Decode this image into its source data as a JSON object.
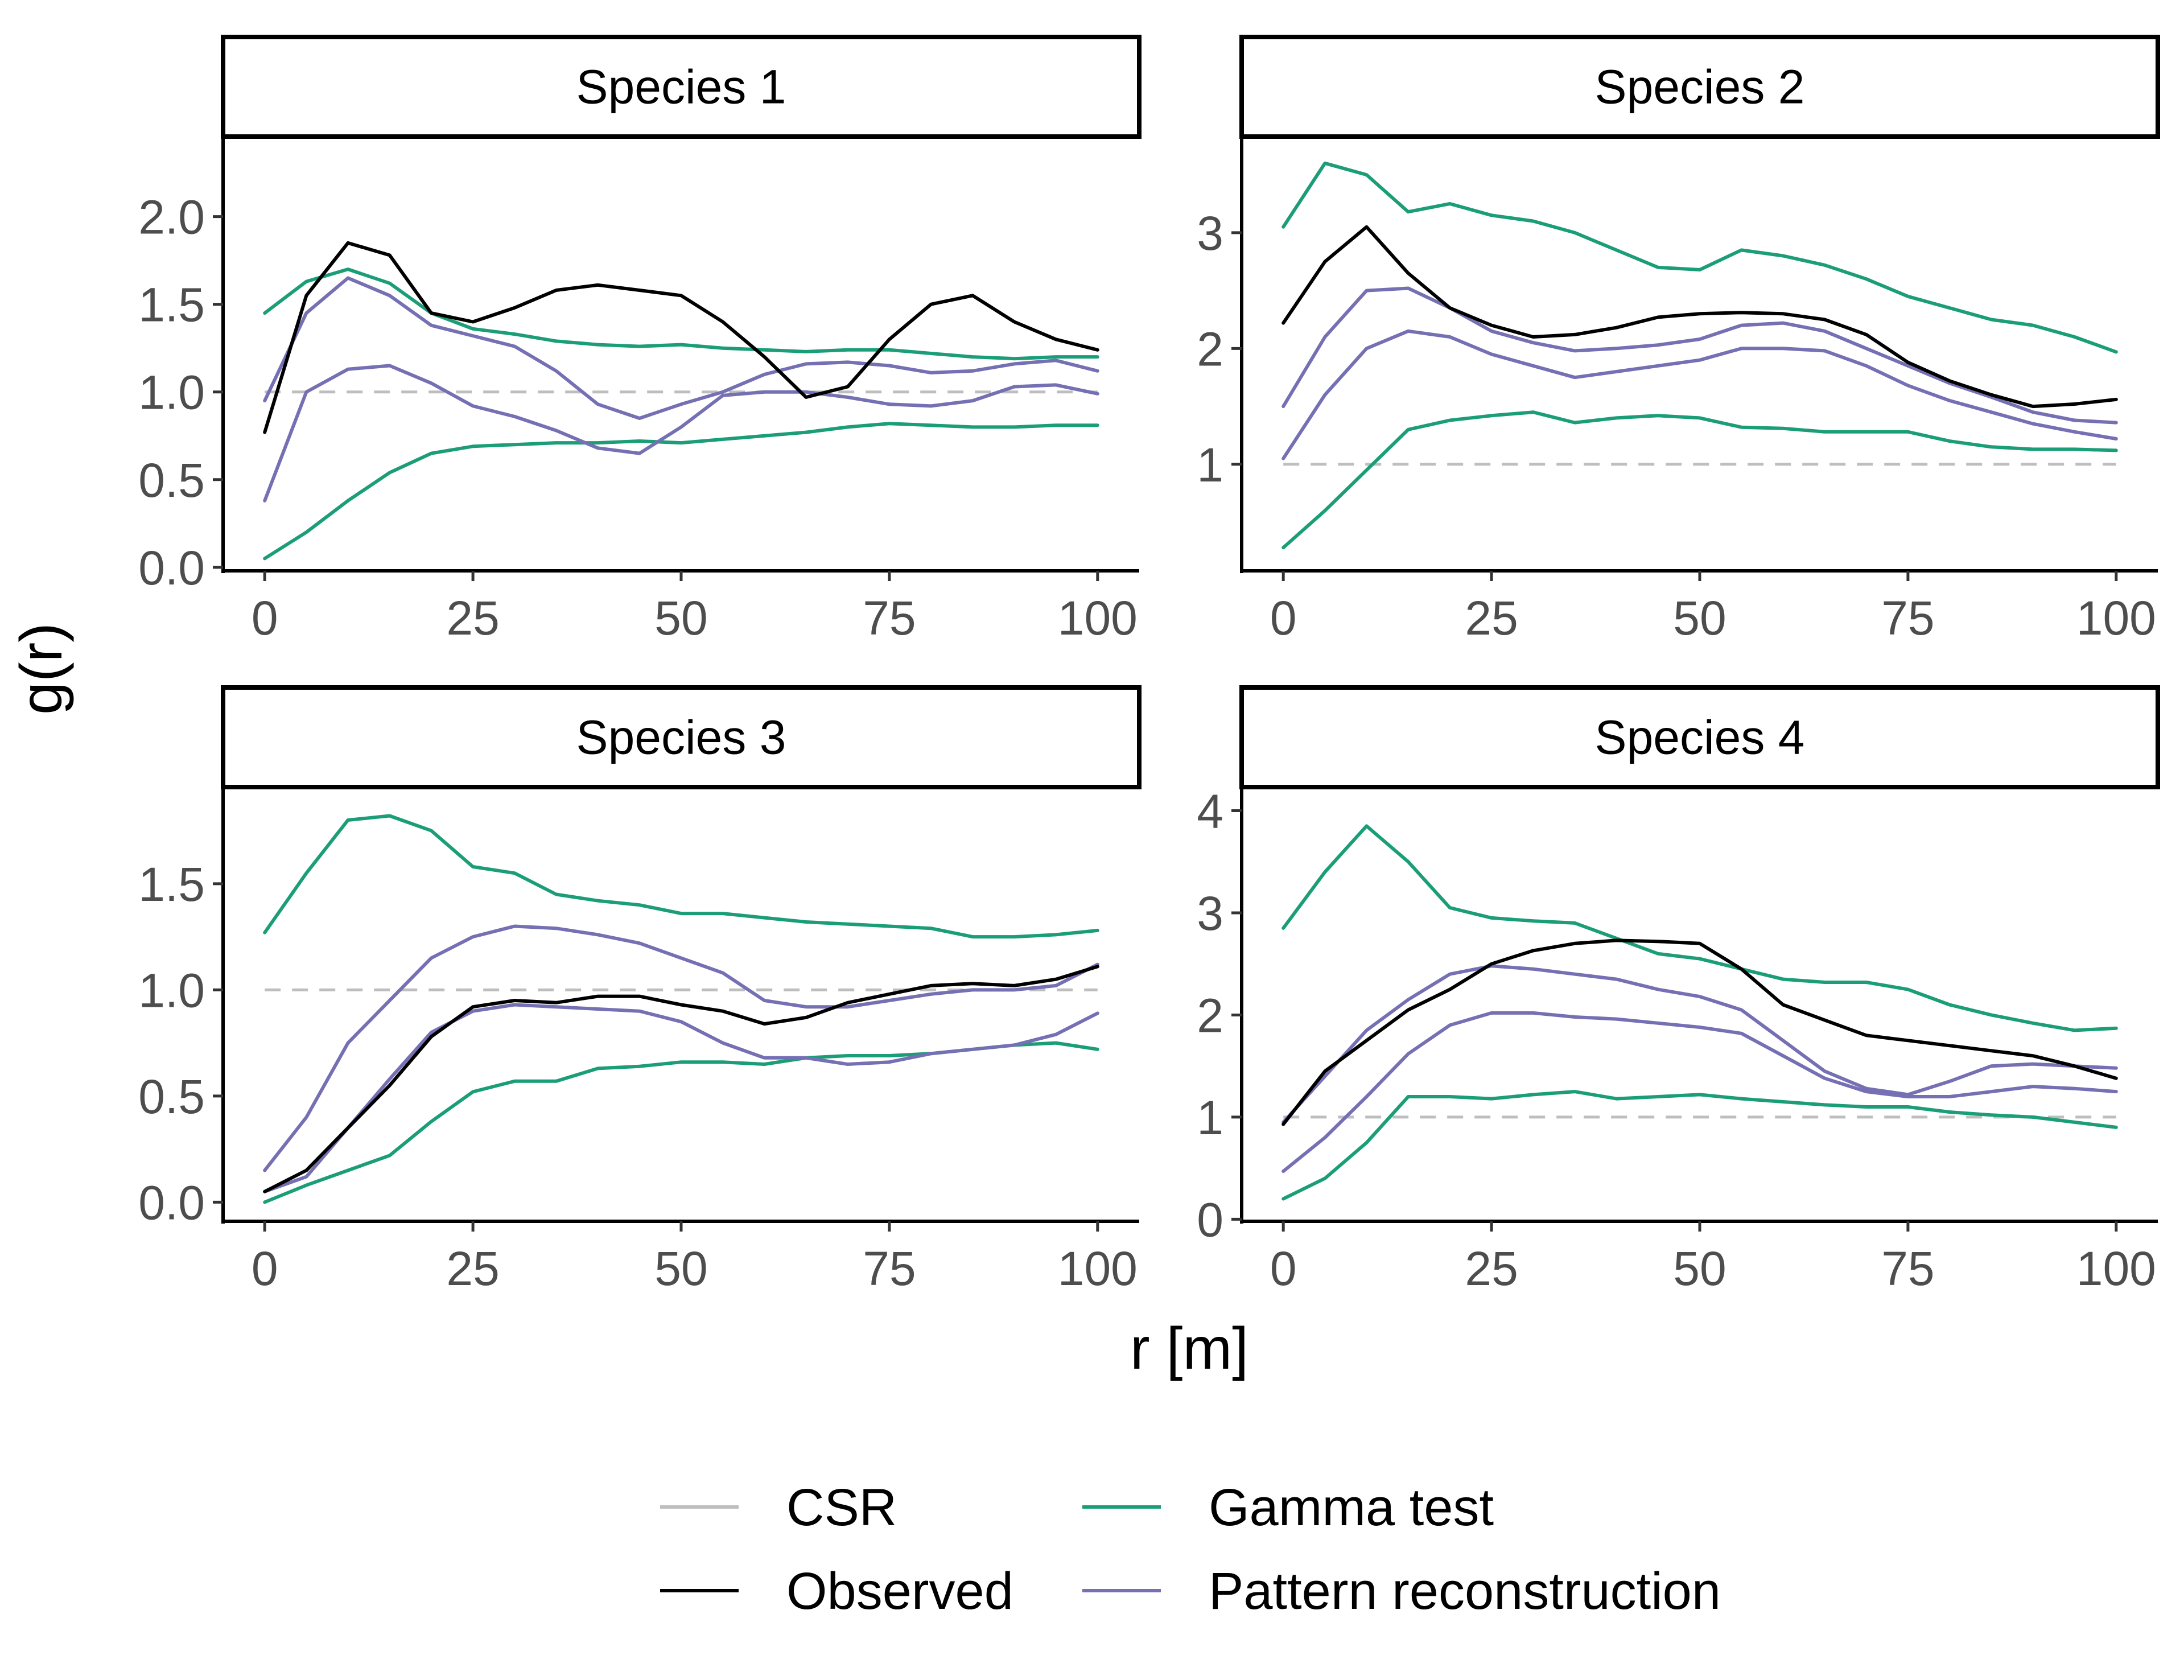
{
  "chart_data": {
    "type": "line",
    "layout": "facet-2x2",
    "xlabel": "r [m]",
    "ylabel": "g(r)",
    "legend": {
      "position": "bottom",
      "entries": [
        {
          "key": "csr",
          "label": "CSR"
        },
        {
          "key": "observed",
          "label": "Observed"
        },
        {
          "key": "gamma",
          "label": "Gamma test"
        },
        {
          "key": "recon",
          "label": "Pattern reconstruction"
        }
      ]
    },
    "colors": {
      "csr": "#bebebe",
      "observed": "#000000",
      "gamma": "#1b9e77",
      "recon": "#7570b3"
    },
    "x": [
      0,
      5,
      10,
      15,
      20,
      25,
      30,
      35,
      40,
      45,
      50,
      55,
      60,
      65,
      70,
      75,
      80,
      85,
      90,
      95,
      100
    ],
    "x_ticks": [
      0,
      25,
      50,
      75,
      100
    ],
    "panels": [
      {
        "title": "Species 1",
        "ylim": [
          -0.02,
          2.45
        ],
        "y_ticks": [
          0.0,
          0.5,
          1.0,
          1.5,
          2.0
        ],
        "y_tick_labels": [
          "0.0",
          "0.5",
          "1.0",
          "1.5",
          "2.0"
        ],
        "csr": 1.0,
        "observed": [
          0.77,
          1.55,
          1.85,
          1.78,
          1.45,
          1.4,
          1.48,
          1.58,
          1.61,
          1.58,
          1.55,
          1.4,
          1.2,
          0.97,
          1.03,
          1.3,
          1.5,
          1.55,
          1.4,
          1.3,
          1.24
        ],
        "gamma_upper": [
          1.45,
          1.63,
          1.7,
          1.62,
          1.45,
          1.36,
          1.33,
          1.29,
          1.27,
          1.26,
          1.27,
          1.25,
          1.24,
          1.23,
          1.24,
          1.24,
          1.22,
          1.2,
          1.19,
          1.2,
          1.2
        ],
        "gamma_lower": [
          0.05,
          0.2,
          0.38,
          0.54,
          0.65,
          0.69,
          0.7,
          0.71,
          0.71,
          0.72,
          0.71,
          0.73,
          0.75,
          0.77,
          0.8,
          0.82,
          0.81,
          0.8,
          0.8,
          0.81,
          0.81
        ],
        "recon_upper": [
          0.95,
          1.45,
          1.65,
          1.55,
          1.38,
          1.32,
          1.26,
          1.12,
          0.93,
          0.85,
          0.93,
          1.0,
          1.1,
          1.16,
          1.17,
          1.15,
          1.11,
          1.12,
          1.16,
          1.18,
          1.12
        ],
        "recon_lower": [
          0.38,
          1.0,
          1.13,
          1.15,
          1.05,
          0.92,
          0.86,
          0.78,
          0.68,
          0.65,
          0.8,
          0.98,
          1.0,
          1.0,
          0.97,
          0.93,
          0.92,
          0.95,
          1.03,
          1.04,
          0.99
        ]
      },
      {
        "title": "Species 2",
        "ylim": [
          0.08,
          3.82
        ],
        "y_ticks": [
          1,
          2,
          3
        ],
        "y_tick_labels": [
          "1",
          "2",
          "3"
        ],
        "csr": 1.0,
        "observed": [
          2.22,
          2.75,
          3.05,
          2.65,
          2.35,
          2.2,
          2.1,
          2.12,
          2.18,
          2.27,
          2.3,
          2.31,
          2.3,
          2.25,
          2.12,
          1.88,
          1.72,
          1.6,
          1.5,
          1.52,
          1.56
        ],
        "gamma_upper": [
          3.05,
          3.6,
          3.5,
          3.18,
          3.25,
          3.15,
          3.1,
          3.0,
          2.85,
          2.7,
          2.68,
          2.85,
          2.8,
          2.72,
          2.6,
          2.45,
          2.35,
          2.25,
          2.2,
          2.1,
          1.97
        ],
        "gamma_lower": [
          0.28,
          0.6,
          0.95,
          1.3,
          1.38,
          1.42,
          1.45,
          1.36,
          1.4,
          1.42,
          1.4,
          1.32,
          1.31,
          1.28,
          1.28,
          1.28,
          1.2,
          1.15,
          1.13,
          1.13,
          1.12
        ],
        "recon_upper": [
          1.5,
          2.1,
          2.5,
          2.52,
          2.35,
          2.15,
          2.05,
          1.98,
          2.0,
          2.03,
          2.08,
          2.2,
          2.22,
          2.15,
          2.0,
          1.85,
          1.7,
          1.58,
          1.45,
          1.38,
          1.36
        ],
        "recon_lower": [
          1.05,
          1.6,
          2.0,
          2.15,
          2.1,
          1.95,
          1.85,
          1.75,
          1.8,
          1.85,
          1.9,
          2.0,
          2.0,
          1.98,
          1.85,
          1.68,
          1.55,
          1.45,
          1.35,
          1.28,
          1.22
        ]
      },
      {
        "title": "Species 3",
        "ylim": [
          -0.09,
          1.95
        ],
        "y_ticks": [
          0.0,
          0.5,
          1.0,
          1.5
        ],
        "y_tick_labels": [
          "0.0",
          "0.5",
          "1.0",
          "1.5"
        ],
        "csr": 1.0,
        "observed": [
          0.05,
          0.15,
          0.35,
          0.55,
          0.78,
          0.92,
          0.95,
          0.94,
          0.97,
          0.97,
          0.93,
          0.9,
          0.84,
          0.87,
          0.94,
          0.98,
          1.02,
          1.03,
          1.02,
          1.05,
          1.11
        ],
        "gamma_upper": [
          1.27,
          1.55,
          1.8,
          1.82,
          1.75,
          1.58,
          1.55,
          1.45,
          1.42,
          1.4,
          1.36,
          1.36,
          1.34,
          1.32,
          1.31,
          1.3,
          1.29,
          1.25,
          1.25,
          1.26,
          1.28
        ],
        "gamma_lower": [
          0.0,
          0.08,
          0.15,
          0.22,
          0.38,
          0.52,
          0.57,
          0.57,
          0.63,
          0.64,
          0.66,
          0.66,
          0.65,
          0.68,
          0.69,
          0.69,
          0.7,
          0.72,
          0.74,
          0.75,
          0.72
        ],
        "recon_upper": [
          0.15,
          0.4,
          0.75,
          0.95,
          1.15,
          1.25,
          1.3,
          1.29,
          1.26,
          1.22,
          1.15,
          1.08,
          0.95,
          0.92,
          0.92,
          0.95,
          0.98,
          1.0,
          1.0,
          1.02,
          1.12
        ],
        "recon_lower": [
          0.05,
          0.12,
          0.35,
          0.58,
          0.8,
          0.9,
          0.93,
          0.92,
          0.91,
          0.9,
          0.85,
          0.75,
          0.68,
          0.68,
          0.65,
          0.66,
          0.7,
          0.72,
          0.74,
          0.79,
          0.89
        ]
      },
      {
        "title": "Species 4",
        "ylim": [
          -0.02,
          4.22
        ],
        "y_ticks": [
          0,
          1,
          2,
          3,
          4
        ],
        "y_tick_labels": [
          "0",
          "1",
          "2",
          "3",
          "4"
        ],
        "csr": 1.0,
        "observed": [
          0.93,
          1.45,
          1.75,
          2.05,
          2.25,
          2.5,
          2.63,
          2.7,
          2.73,
          2.72,
          2.7,
          2.45,
          2.1,
          1.95,
          1.8,
          1.75,
          1.7,
          1.65,
          1.6,
          1.5,
          1.38
        ],
        "gamma_upper": [
          2.85,
          3.4,
          3.85,
          3.5,
          3.05,
          2.95,
          2.92,
          2.9,
          2.75,
          2.6,
          2.55,
          2.45,
          2.35,
          2.32,
          2.32,
          2.25,
          2.1,
          2.0,
          1.92,
          1.85,
          1.87
        ],
        "gamma_lower": [
          0.2,
          0.4,
          0.75,
          1.2,
          1.2,
          1.18,
          1.22,
          1.25,
          1.18,
          1.2,
          1.22,
          1.18,
          1.15,
          1.12,
          1.1,
          1.1,
          1.05,
          1.02,
          1.0,
          0.95,
          0.9
        ],
        "recon_upper": [
          0.95,
          1.4,
          1.85,
          2.15,
          2.4,
          2.48,
          2.45,
          2.4,
          2.35,
          2.25,
          2.18,
          2.05,
          1.75,
          1.45,
          1.28,
          1.22,
          1.35,
          1.5,
          1.52,
          1.5,
          1.48
        ],
        "recon_lower": [
          0.47,
          0.8,
          1.2,
          1.62,
          1.9,
          2.02,
          2.02,
          1.98,
          1.96,
          1.92,
          1.88,
          1.82,
          1.6,
          1.38,
          1.25,
          1.2,
          1.2,
          1.25,
          1.3,
          1.28,
          1.25
        ]
      }
    ]
  }
}
